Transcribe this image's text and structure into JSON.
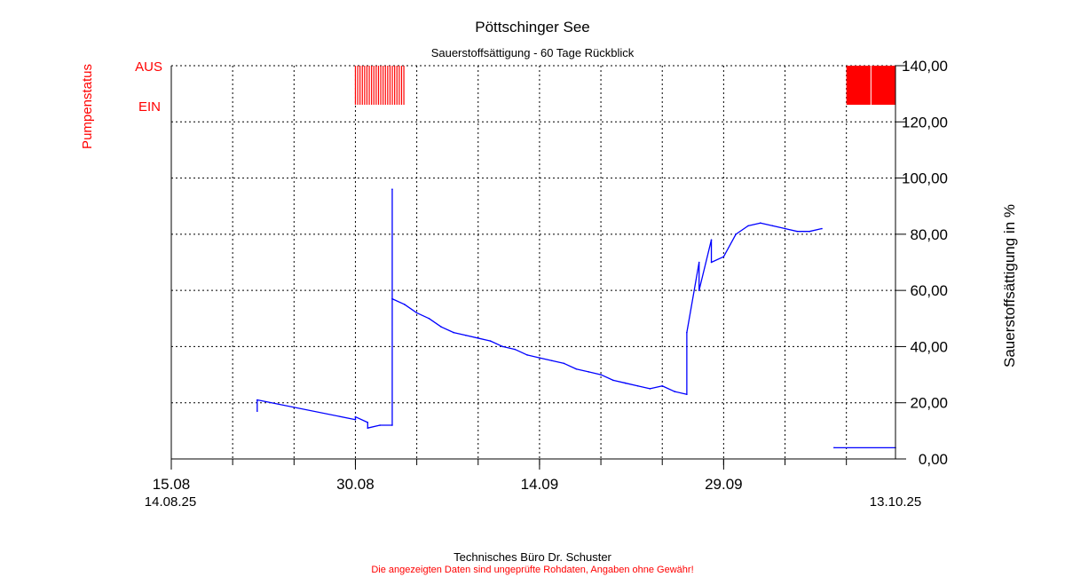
{
  "chart_data": {
    "type": "line",
    "title": "Pöttschinger See",
    "subtitle": "Sauerstoffsättigung - 60 Tage Rückblick",
    "ylabel_right": "Sauerstoffsättigung in %",
    "ylabel_left": "Pumpenstatus",
    "pump_states": [
      "AUS",
      "EIN"
    ],
    "y_ticks": [
      "0,00",
      "20,00",
      "40,00",
      "60,00",
      "80,00",
      "100,00",
      "120,00",
      "140,00"
    ],
    "ylim": [
      0,
      140
    ],
    "xlim": [
      "2025-08-15",
      "2025-10-13"
    ],
    "x_tick_labels": [
      {
        "date": "2025-08-15",
        "label": "15.08"
      },
      {
        "date": "2025-08-30",
        "label": "30.08"
      },
      {
        "date": "2025-09-14",
        "label": "14.09"
      },
      {
        "date": "2025-09-29",
        "label": "29.09"
      }
    ],
    "x_minor_ticks": [
      "2025-08-15",
      "2025-08-20",
      "2025-08-25",
      "2025-08-30",
      "2025-09-04",
      "2025-09-09",
      "2025-09-14",
      "2025-09-19",
      "2025-09-24",
      "2025-09-29",
      "2025-10-04",
      "2025-10-09"
    ],
    "range_start_label": "14.08.25",
    "range_end_label": "13.10.25",
    "grid": true,
    "series_color": "#0000ff",
    "pump_color": "#ff0000",
    "series": [
      {
        "x": [
          "2025-08-22",
          "2025-08-22",
          "2025-08-30",
          "2025-08-30",
          "2025-08-31",
          "2025-08-31",
          "2025-09-01",
          "2025-09-02",
          "2025-09-02",
          "2025-09-02",
          "2025-09-03",
          "2025-09-04",
          "2025-09-05",
          "2025-09-06",
          "2025-09-07",
          "2025-09-08",
          "2025-09-09",
          "2025-09-10",
          "2025-09-11",
          "2025-09-12",
          "2025-09-13",
          "2025-09-14",
          "2025-09-15",
          "2025-09-16",
          "2025-09-17",
          "2025-09-18",
          "2025-09-19",
          "2025-09-20",
          "2025-09-21",
          "2025-09-22",
          "2025-09-23",
          "2025-09-24",
          "2025-09-25",
          "2025-09-26",
          "2025-09-26",
          "2025-09-27",
          "2025-09-27",
          "2025-09-28",
          "2025-09-28",
          "2025-09-29",
          "2025-09-30",
          "2025-10-01",
          "2025-10-02",
          "2025-10-03",
          "2025-10-04",
          "2025-10-05",
          "2025-10-06",
          "2025-10-07"
        ],
        "y": [
          17,
          21,
          14,
          15,
          13,
          11,
          12,
          12,
          96,
          57,
          55,
          52,
          50,
          47,
          45,
          44,
          43,
          42,
          40,
          39,
          37,
          36,
          35,
          34,
          32,
          31,
          30,
          28,
          27,
          26,
          25,
          26,
          24,
          23,
          45,
          70,
          60,
          78,
          70,
          72,
          80,
          83,
          84,
          83,
          82,
          81,
          81,
          82
        ]
      },
      {
        "x": [
          "2025-10-08",
          "2025-10-13"
        ],
        "y": [
          4,
          4
        ]
      }
    ],
    "pump_on_intervals": [
      [
        "2025-08-30",
        "2025-09-03"
      ],
      [
        "2025-10-09",
        "2025-10-13"
      ]
    ]
  },
  "footer": {
    "company": "Technisches Büro Dr. Schuster",
    "disclaimer": "Die angezeigten Daten sind ungeprüfte Rohdaten, Angaben ohne Gewähr!"
  }
}
